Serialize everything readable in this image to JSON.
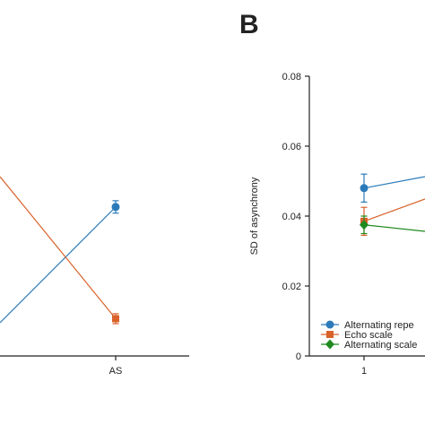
{
  "panel_b_label": "B",
  "chart_data": [
    {
      "type": "line",
      "panel": "left",
      "categories": [
        "AS"
      ],
      "series": [
        {
          "color": "#2b7bba",
          "marker": "circle",
          "values": [
            0.6
          ],
          "error": [
            0.025
          ]
        },
        {
          "color": "#d9622b",
          "marker": "square",
          "values": [
            0.15
          ],
          "error": [
            0.02
          ]
        }
      ],
      "ylim": [
        0,
        1
      ],
      "grid": false
    },
    {
      "type": "line",
      "panel": "B",
      "ylabel": "SD of asynchrony",
      "categories": [
        "1"
      ],
      "yticks": [
        "0",
        "0.02",
        "0.04",
        "0.06",
        "0.08"
      ],
      "ylim": [
        0,
        0.08
      ],
      "grid": false,
      "legend_placement": "bottom-right",
      "series": [
        {
          "name": "Alternating repe",
          "color": "#2b7bba",
          "marker": "circle",
          "values": [
            0.048
          ],
          "error": [
            0.004
          ]
        },
        {
          "name": "Echo scale",
          "color": "#d9622b",
          "marker": "square",
          "values": [
            0.0385
          ],
          "error": [
            0.004
          ]
        },
        {
          "name": "Alternating scale",
          "color": "#1e8a1e",
          "marker": "diamond",
          "values": [
            0.0375
          ],
          "error": [
            0.0025
          ]
        }
      ]
    }
  ]
}
